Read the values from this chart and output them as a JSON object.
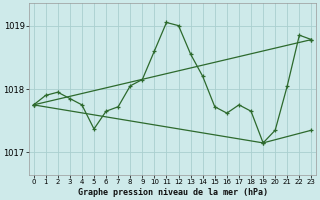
{
  "title": "Graphe pression niveau de la mer (hPa)",
  "bg_color": "#ceeaea",
  "grid_color_major": "#aacfcf",
  "grid_color_minor": "#bbdede",
  "line_color": "#2d6a2d",
  "x_ticks": [
    0,
    1,
    2,
    3,
    4,
    5,
    6,
    7,
    8,
    9,
    10,
    11,
    12,
    13,
    14,
    15,
    16,
    17,
    18,
    19,
    20,
    21,
    22,
    23
  ],
  "y_ticks": [
    1017,
    1018,
    1019
  ],
  "ylim": [
    1016.65,
    1019.35
  ],
  "xlim": [
    -0.4,
    23.4
  ],
  "series_main": {
    "x": [
      0,
      1,
      2,
      3,
      4,
      5,
      6,
      7,
      8,
      9,
      10,
      11,
      12,
      13,
      14,
      15,
      16,
      17,
      18,
      19,
      20,
      21,
      22,
      23
    ],
    "y": [
      1017.75,
      1017.9,
      1017.95,
      1017.85,
      1017.75,
      1017.37,
      1017.65,
      1017.72,
      1018.05,
      1018.15,
      1018.6,
      1019.05,
      1019.0,
      1018.55,
      1018.2,
      1017.72,
      1017.62,
      1017.75,
      1017.65,
      1017.15,
      1017.35,
      1018.05,
      1018.85,
      1018.78
    ]
  },
  "series_upper": {
    "x": [
      0,
      23
    ],
    "y": [
      1017.75,
      1018.78
    ]
  },
  "series_lower": {
    "x": [
      0,
      19,
      23
    ],
    "y": [
      1017.75,
      1017.15,
      1017.35
    ]
  }
}
